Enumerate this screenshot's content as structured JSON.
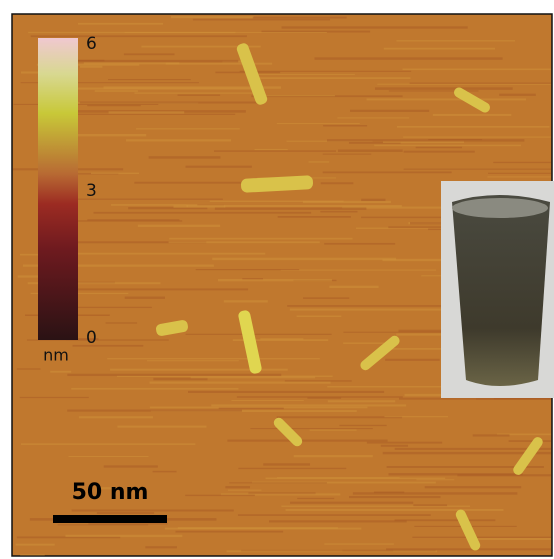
{
  "colorbar": {
    "ticks": [
      6,
      3,
      0
    ],
    "unit": "nm"
  },
  "scale_bar": {
    "label": "50 nm"
  }
}
